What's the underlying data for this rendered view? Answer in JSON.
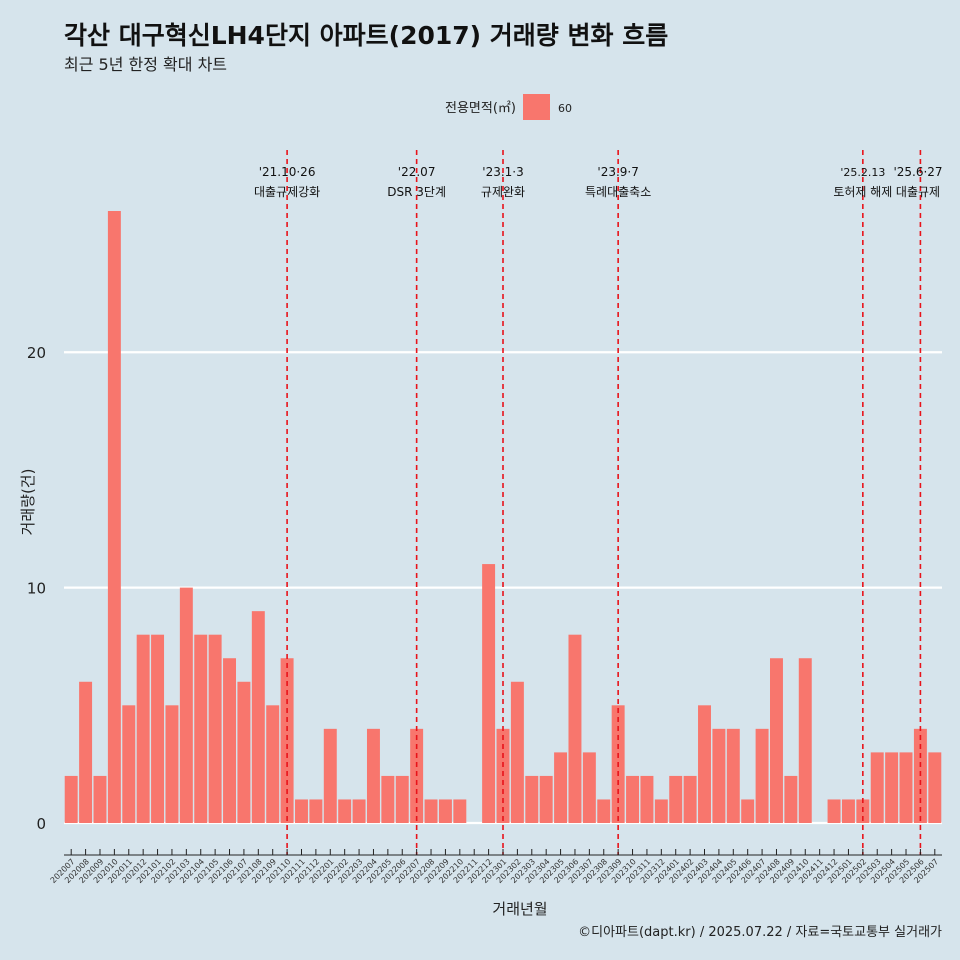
{
  "header": {
    "title": "각산 대구혁신LH4단지 아파트(2017) 거래량 변화 흐름",
    "subtitle": "최근 5년 한정 확대 차트"
  },
  "legend": {
    "title": "전용면적(㎡)",
    "items": [
      {
        "label": "60",
        "color": "#f8766d"
      }
    ]
  },
  "caption": "©디아파트(dapt.kr) / 2025.07.22 / 자료=국토교통부 실거래가",
  "chart_data": {
    "type": "bar",
    "xlabel": "거래년월",
    "ylabel": "거래량(건)",
    "ylim": [
      0,
      26
    ],
    "yticks": [
      0,
      10,
      20
    ],
    "grid": true,
    "legend_position": "top",
    "bar_color": "#f8766d",
    "categories": [
      "202007",
      "202008",
      "202009",
      "202010",
      "202011",
      "202012",
      "202101",
      "202102",
      "202103",
      "202104",
      "202105",
      "202106",
      "202107",
      "202108",
      "202109",
      "202110",
      "202111",
      "202112",
      "202201",
      "202202",
      "202203",
      "202204",
      "202205",
      "202206",
      "202207",
      "202208",
      "202209",
      "202210",
      "202211",
      "202212",
      "202301",
      "202302",
      "202303",
      "202304",
      "202305",
      "202306",
      "202307",
      "202308",
      "202309",
      "202310",
      "202311",
      "202312",
      "202401",
      "202402",
      "202403",
      "202404",
      "202405",
      "202406",
      "202407",
      "202408",
      "202409",
      "202410",
      "202411",
      "202412",
      "202501",
      "202502",
      "202503",
      "202504",
      "202505",
      "202506",
      "202507"
    ],
    "series": [
      {
        "name": "60",
        "values": [
          2,
          6,
          2,
          26,
          5,
          8,
          8,
          5,
          10,
          8,
          8,
          7,
          6,
          9,
          5,
          7,
          1,
          1,
          4,
          1,
          1,
          4,
          2,
          2,
          4,
          1,
          1,
          1,
          0,
          11,
          4,
          6,
          2,
          2,
          3,
          8,
          3,
          1,
          5,
          2,
          2,
          1,
          2,
          2,
          5,
          4,
          4,
          1,
          4,
          7,
          2,
          7,
          0,
          1,
          1,
          1,
          3,
          3,
          3,
          4,
          3
        ]
      }
    ],
    "annotations": [
      {
        "category": "202110",
        "line1": "'21.10·26",
        "line2": "대출규제강화"
      },
      {
        "category": "202207",
        "line1": "'22.07",
        "line2": "DSR 3단계"
      },
      {
        "category": "202301",
        "line1": "'23.1·3",
        "line2": "규제완화"
      },
      {
        "category": "202309",
        "line1": "'23.9·7",
        "line2": "특례대출축소"
      },
      {
        "category": "202502",
        "line1": "'25.2.13",
        "line2": "토허제 해제"
      },
      {
        "category": "202506",
        "line1": "'25.6·27",
        "line2": "대출규제"
      }
    ]
  }
}
